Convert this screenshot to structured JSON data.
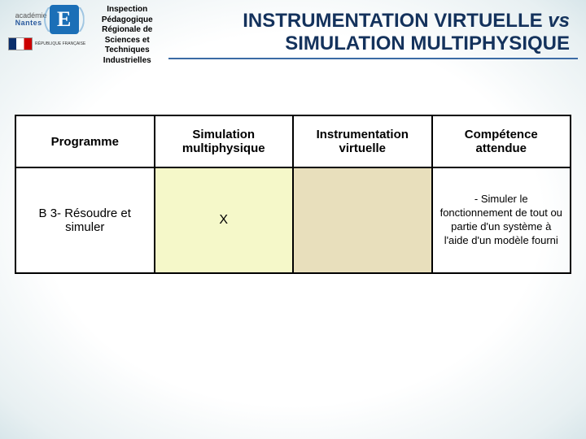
{
  "header": {
    "academie_line1": "académie",
    "academie_line2": "Nantes",
    "gov_sub": "RÉPUBLIQUE FRANÇAISE",
    "inspection": "Inspection Pédagogique Régionale de Sciences et Techniques Industrielles",
    "title_line1": "INSTRUMENTATION VIRTUELLE",
    "title_vs": "vs",
    "title_line2": "SIMULATION MULTIPHYSIQUE"
  },
  "table": {
    "columns": [
      "Programme",
      "Simulation multiphysique",
      "Instrumentation virtuelle",
      "Compétence attendue"
    ],
    "column_bg": [
      "#ffffff",
      "#f5f8c9",
      "#e8dfbc",
      "#ffffff"
    ],
    "rows": [
      {
        "programme": "B 3- Résoudre et simuler",
        "sim": "X",
        "inst": "",
        "competence": "- Simuler le fonctionnement de tout ou partie d'un système à l'aide d'un modèle fourni"
      }
    ]
  },
  "styling": {
    "title_color": "#14325c",
    "underline_color": "#3b6ba5",
    "border_color": "#000000",
    "body_bg_center": "#ffffff",
    "body_bg_edge": "#d8e6ea",
    "title_fontsize": 24,
    "header_fontsize": 15,
    "cell_fontsize": 14
  }
}
